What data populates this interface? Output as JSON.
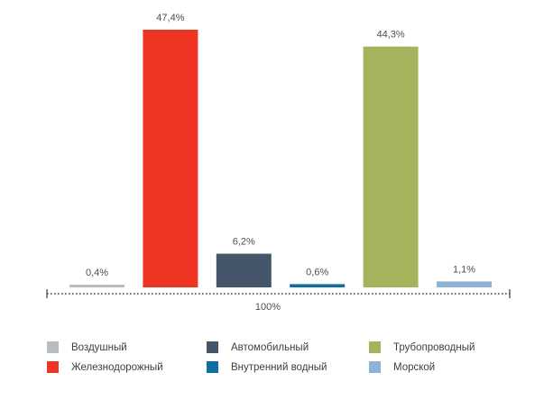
{
  "chart_data": {
    "type": "bar",
    "categories": [
      "Воздушный",
      "Железнодорожный",
      "Автомобильный",
      "Внутренний водный",
      "Трубопроводный",
      "Морской"
    ],
    "values": [
      0.4,
      47.4,
      6.2,
      0.6,
      44.3,
      1.1
    ],
    "value_labels": [
      "0,4%",
      "47,4%",
      "6,2%",
      "0,6%",
      "44,3%",
      "1,1%"
    ],
    "colors": [
      "#b7bcc0",
      "#ee3524",
      "#45566a",
      "#0e6ea2",
      "#a4b35c",
      "#8fb3d6"
    ],
    "ylim": [
      0,
      47.4
    ],
    "grid": false,
    "total_label": "100%",
    "legend_position": "bottom"
  },
  "legend": {
    "items": [
      {
        "label": "Воздушный",
        "color": "#b7bcc0"
      },
      {
        "label": "Автомобильный",
        "color": "#45566a"
      },
      {
        "label": "Трубопроводный",
        "color": "#a4b35c"
      },
      {
        "label": "Железнодорожный",
        "color": "#ee3524"
      },
      {
        "label": "Внутренний водный",
        "color": "#0e6ea2"
      },
      {
        "label": "Морской",
        "color": "#8fb3d6"
      }
    ]
  }
}
